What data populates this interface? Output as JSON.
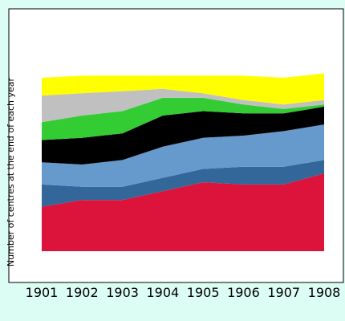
{
  "chart_data": {
    "type": "area",
    "stacked": true,
    "title": "",
    "xlabel": "",
    "ylabel": "Number of centres at the end of each year",
    "categories": [
      "1901",
      "1902",
      "1903",
      "1904",
      "1905",
      "1906",
      "1907",
      "1908"
    ],
    "ylim": [
      0,
      100
    ],
    "grid": false,
    "legend": "none",
    "background_color": "#dcfdf4",
    "plot_background_color": "#ffffff",
    "series": [
      {
        "color": "#dc143c",
        "values": [
          20,
          23,
          23,
          27,
          31,
          30,
          30,
          35
        ]
      },
      {
        "color": "#336699",
        "values": [
          10,
          6,
          6,
          6,
          6,
          8,
          8,
          6
        ]
      },
      {
        "color": "#6699cc",
        "values": [
          10,
          10,
          12,
          14,
          14,
          14,
          16,
          16
        ]
      },
      {
        "color": "#000000",
        "values": [
          10,
          12,
          12,
          14,
          12,
          10,
          8,
          8
        ]
      },
      {
        "color": "#33cc33",
        "values": [
          8,
          10,
          10,
          8,
          6,
          4,
          2,
          1
        ]
      },
      {
        "color": "#c0c0c0",
        "values": [
          12,
          10,
          9,
          4,
          2,
          2,
          2,
          2
        ]
      },
      {
        "color": "#ffff00",
        "values": [
          8,
          8,
          7,
          6,
          8,
          11,
          12,
          12
        ]
      }
    ]
  }
}
